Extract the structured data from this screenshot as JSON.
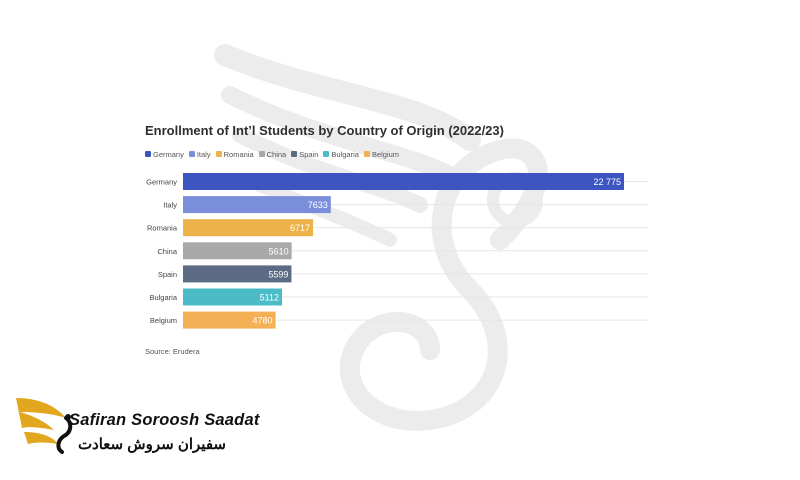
{
  "chart_data": {
    "type": "bar",
    "orientation": "horizontal",
    "title": "Enrollment of Int’l Students by Country of Origin (2022/23)",
    "categories": [
      "Germany",
      "Italy",
      "Romania",
      "China",
      "Spain",
      "Bulgaria",
      "Belgium"
    ],
    "values": [
      22775,
      7633,
      6717,
      5610,
      5599,
      5112,
      4780
    ],
    "value_labels": [
      "22 775",
      "7633",
      "6717",
      "5610",
      "5599",
      "5112",
      "4780"
    ],
    "colors": [
      "#3d55c0",
      "#7b8edc",
      "#edb24a",
      "#a9a9a9",
      "#5c6b84",
      "#4bbcc7",
      "#f4b055"
    ],
    "legend": [
      "Germany",
      "Italy",
      "Romania",
      "China",
      "Spain",
      "Bulgaria",
      "Belgium"
    ],
    "legend_placement": "top-left",
    "xlim": [
      0,
      22775
    ],
    "grid": true,
    "source": "Source: Erudera"
  },
  "logo": {
    "name_en": "Safiran Soroosh Saadat",
    "name_fa": "سفیران سروش سعادت"
  }
}
